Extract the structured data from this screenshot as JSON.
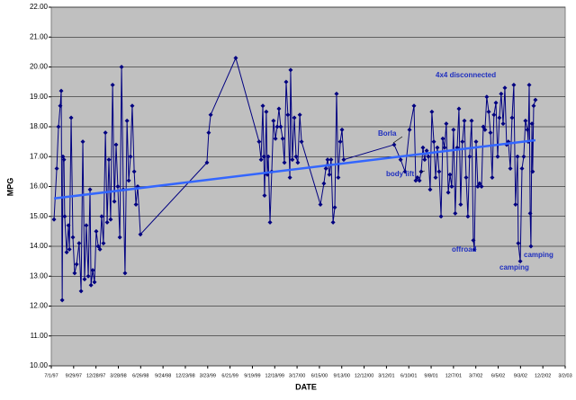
{
  "chart_data": {
    "type": "line",
    "ylabel": "MPG",
    "xlabel": "DATE",
    "ylim": [
      10,
      22
    ],
    "yticks": [
      {
        "value": 10,
        "label": "10.00"
      },
      {
        "value": 11,
        "label": "11.00"
      },
      {
        "value": 12,
        "label": "12.00"
      },
      {
        "value": 13,
        "label": "13.00"
      },
      {
        "value": 14,
        "label": "14.00"
      },
      {
        "value": 15,
        "label": "15.00"
      },
      {
        "value": 16,
        "label": "16.00"
      },
      {
        "value": 17,
        "label": "17.00"
      },
      {
        "value": 18,
        "label": "18.00"
      },
      {
        "value": 19,
        "label": "19.00"
      },
      {
        "value": 20,
        "label": "20.00"
      },
      {
        "value": 21,
        "label": "21.00"
      },
      {
        "value": 22,
        "label": "22.00"
      }
    ],
    "xlim": [
      0,
      2070
    ],
    "xticks": [
      {
        "value": 0,
        "label": "7/1/97"
      },
      {
        "value": 90,
        "label": "9/29/97"
      },
      {
        "value": 180,
        "label": "12/28/97"
      },
      {
        "value": 270,
        "label": "3/28/98"
      },
      {
        "value": 360,
        "label": "6/26/98"
      },
      {
        "value": 450,
        "label": "9/24/98"
      },
      {
        "value": 540,
        "label": "12/23/98"
      },
      {
        "value": 630,
        "label": "3/23/99"
      },
      {
        "value": 720,
        "label": "6/21/99"
      },
      {
        "value": 810,
        "label": "9/19/99"
      },
      {
        "value": 900,
        "label": "12/18/99"
      },
      {
        "value": 990,
        "label": "3/17/00"
      },
      {
        "value": 1080,
        "label": "6/15/00"
      },
      {
        "value": 1170,
        "label": "9/13/00"
      },
      {
        "value": 1260,
        "label": "12/12/00"
      },
      {
        "value": 1350,
        "label": "3/12/01"
      },
      {
        "value": 1440,
        "label": "6/10/01"
      },
      {
        "value": 1530,
        "label": "9/8/01"
      },
      {
        "value": 1620,
        "label": "12/7/01"
      },
      {
        "value": 1710,
        "label": "3/7/02"
      },
      {
        "value": 1800,
        "label": "6/5/02"
      },
      {
        "value": 1890,
        "label": "9/3/02"
      },
      {
        "value": 1980,
        "label": "12/2/02"
      },
      {
        "value": 2070,
        "label": "3/2/03"
      }
    ],
    "grid": true,
    "color": "#000080",
    "x": [
      11,
      22,
      29,
      36,
      40,
      44,
      47,
      51,
      54,
      62,
      69,
      73,
      80,
      87,
      94,
      102,
      112,
      120,
      127,
      134,
      141,
      149,
      156,
      160,
      167,
      174,
      181,
      189,
      196,
      203,
      210,
      218,
      225,
      232,
      239,
      247,
      254,
      261,
      268,
      276,
      283,
      290,
      297,
      305,
      312,
      319,
      326,
      334,
      341,
      348,
      359,
      627,
      634,
      642,
      743,
      837,
      845,
      852,
      856,
      859,
      866,
      870,
      874,
      881,
      888,
      895,
      903,
      910,
      917,
      924,
      932,
      939,
      946,
      953,
      961,
      964,
      971,
      979,
      986,
      993,
      1001,
      1008,
      1084,
      1098,
      1106,
      1113,
      1120,
      1127,
      1135,
      1142,
      1149,
      1156,
      1164,
      1171,
      1178,
      1381,
      1407,
      1425,
      1443,
      1461,
      1468,
      1475,
      1483,
      1490,
      1497,
      1504,
      1512,
      1519,
      1526,
      1533,
      1541,
      1548,
      1555,
      1562,
      1570,
      1577,
      1584,
      1591,
      1599,
      1606,
      1613,
      1620,
      1627,
      1635,
      1642,
      1649,
      1656,
      1664,
      1671,
      1678,
      1685,
      1693,
      1700,
      1704,
      1711,
      1718,
      1725,
      1733,
      1740,
      1747,
      1754,
      1762,
      1769,
      1776,
      1783,
      1791,
      1798,
      1805,
      1812,
      1820,
      1827,
      1834,
      1841,
      1849,
      1856,
      1863,
      1870,
      1878,
      1881,
      1889,
      1896,
      1903,
      1910,
      1918,
      1921,
      1925,
      1929,
      1932,
      1936,
      1939,
      1943,
      1950
    ],
    "values": [
      14.9,
      16.6,
      18.0,
      18.7,
      19.2,
      12.2,
      17.0,
      16.9,
      15.0,
      13.8,
      14.7,
      13.9,
      18.3,
      14.3,
      13.1,
      13.4,
      14.1,
      12.5,
      17.5,
      12.9,
      14.7,
      13.0,
      15.9,
      12.7,
      13.2,
      12.8,
      14.5,
      14.0,
      13.9,
      15.0,
      14.1,
      17.8,
      14.8,
      16.9,
      14.9,
      19.4,
      15.5,
      17.4,
      16.0,
      14.3,
      20.0,
      15.9,
      13.1,
      18.2,
      16.2,
      17.0,
      18.7,
      16.5,
      15.4,
      16.0,
      14.4,
      16.8,
      17.8,
      18.4,
      20.3,
      17.5,
      16.9,
      18.7,
      17.0,
      15.7,
      18.5,
      16.4,
      17.0,
      14.8,
      16.5,
      18.2,
      17.6,
      18.0,
      18.6,
      18.0,
      17.6,
      16.8,
      19.5,
      18.4,
      16.3,
      19.9,
      16.9,
      18.3,
      17.0,
      16.8,
      18.4,
      17.5,
      15.4,
      16.1,
      16.6,
      16.9,
      16.4,
      16.9,
      14.8,
      15.3,
      19.1,
      16.3,
      17.5,
      17.9,
      16.9,
      17.4,
      16.9,
      16.5,
      17.9,
      18.7,
      16.2,
      16.3,
      16.2,
      16.5,
      17.3,
      16.9,
      17.2,
      17.0,
      15.9,
      18.5,
      17.5,
      16.3,
      17.3,
      16.5,
      15.0,
      17.6,
      17.3,
      18.1,
      15.8,
      16.4,
      16.0,
      17.9,
      15.1,
      17.3,
      18.6,
      15.4,
      17.5,
      18.2,
      16.3,
      15.0,
      17.0,
      18.2,
      14.2,
      13.9,
      17.5,
      16.0,
      16.1,
      16.0,
      18.0,
      17.9,
      19.0,
      18.5,
      17.8,
      16.3,
      18.4,
      18.8,
      17.0,
      18.3,
      19.1,
      18.1,
      19.3,
      17.4,
      17.5,
      16.6,
      18.3,
      19.4,
      15.4,
      17.0,
      14.1,
      13.5,
      16.6,
      17.0,
      18.2,
      17.9,
      17.5,
      19.4,
      15.1,
      14.0,
      18.1,
      16.5,
      18.7,
      18.9
    ],
    "trendline": {
      "color": "#3366ff",
      "x": [
        11,
        1950
      ],
      "values": [
        15.6,
        17.55
      ]
    },
    "annotations": [
      "4x4 disconnected",
      "Borla",
      "body lift",
      "offroad",
      "camping",
      "camping"
    ]
  }
}
